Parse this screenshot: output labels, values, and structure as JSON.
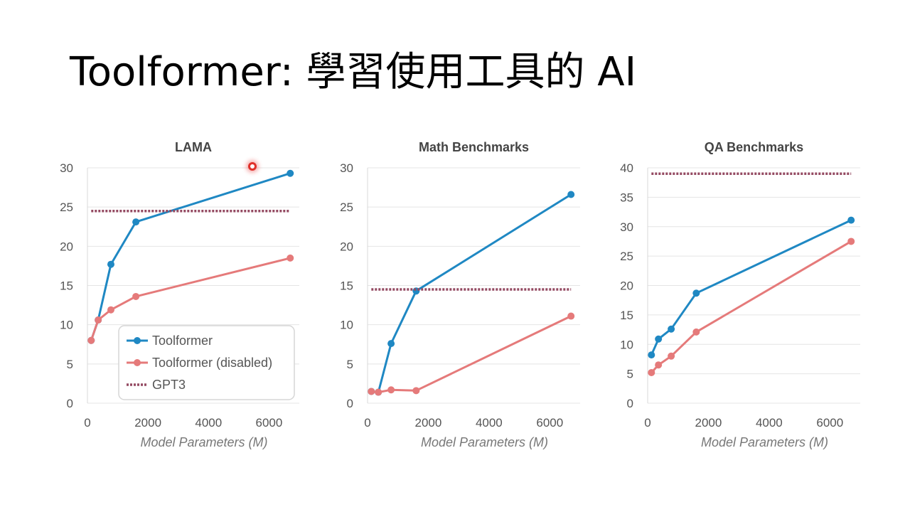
{
  "slide": {
    "title": "Toolformer: 學習使用工具的 AI"
  },
  "colors": {
    "toolformer": "#1f88c3",
    "disabled": "#e57a7a",
    "gpt3": "#944a62",
    "grid": "#e4e4e4"
  },
  "chart_data": [
    {
      "type": "line",
      "title": "LAMA",
      "xlabel": "Model Parameters (M)",
      "ylabel": "",
      "xlim": [
        0,
        7000
      ],
      "ylim": [
        0,
        30
      ],
      "xticks": [
        0,
        2000,
        4000,
        6000
      ],
      "yticks": [
        0,
        5,
        10,
        15,
        20,
        25,
        30
      ],
      "grid": true,
      "legend": "bottom-right",
      "series": [
        {
          "name": "Toolformer",
          "style": "solid",
          "color": "#1f88c3",
          "x": [
            124,
            355,
            775,
            1600,
            6700
          ],
          "y": [
            8.0,
            10.6,
            17.7,
            23.1,
            29.3
          ]
        },
        {
          "name": "Toolformer (disabled)",
          "style": "solid",
          "color": "#e57a7a",
          "x": [
            124,
            355,
            775,
            1600,
            6700
          ],
          "y": [
            8.0,
            10.6,
            11.9,
            13.6,
            18.5
          ]
        },
        {
          "name": "GPT3",
          "style": "dotted",
          "color": "#944a62",
          "x": [
            124,
            6700
          ],
          "y": [
            24.5,
            24.5
          ]
        }
      ]
    },
    {
      "type": "line",
      "title": "Math Benchmarks",
      "xlabel": "Model Parameters (M)",
      "ylabel": "",
      "xlim": [
        0,
        7000
      ],
      "ylim": [
        0,
        30
      ],
      "xticks": [
        0,
        2000,
        4000,
        6000
      ],
      "yticks": [
        0,
        5,
        10,
        15,
        20,
        25,
        30
      ],
      "grid": true,
      "legend": "none",
      "series": [
        {
          "name": "Toolformer",
          "style": "solid",
          "color": "#1f88c3",
          "x": [
            124,
            355,
            775,
            1600,
            6700
          ],
          "y": [
            1.5,
            1.4,
            7.6,
            14.3,
            26.6
          ]
        },
        {
          "name": "Toolformer (disabled)",
          "style": "solid",
          "color": "#e57a7a",
          "x": [
            124,
            355,
            775,
            1600,
            6700
          ],
          "y": [
            1.5,
            1.4,
            1.7,
            1.6,
            11.1
          ]
        },
        {
          "name": "GPT3",
          "style": "dotted",
          "color": "#944a62",
          "x": [
            124,
            6700
          ],
          "y": [
            14.5,
            14.5
          ]
        }
      ]
    },
    {
      "type": "line",
      "title": "QA Benchmarks",
      "xlabel": "Model Parameters (M)",
      "ylabel": "",
      "xlim": [
        0,
        7000
      ],
      "ylim": [
        0,
        40
      ],
      "xticks": [
        0,
        2000,
        4000,
        6000
      ],
      "yticks": [
        0,
        5,
        10,
        15,
        20,
        25,
        30,
        35,
        40
      ],
      "grid": true,
      "legend": "none",
      "series": [
        {
          "name": "Toolformer",
          "style": "solid",
          "color": "#1f88c3",
          "x": [
            124,
            355,
            775,
            1600,
            6700
          ],
          "y": [
            8.2,
            10.9,
            12.6,
            18.7,
            31.1
          ]
        },
        {
          "name": "Toolformer (disabled)",
          "style": "solid",
          "color": "#e57a7a",
          "x": [
            124,
            355,
            775,
            1600,
            6700
          ],
          "y": [
            5.2,
            6.5,
            8.0,
            12.1,
            27.5
          ]
        },
        {
          "name": "GPT3",
          "style": "dotted",
          "color": "#944a62",
          "x": [
            124,
            6700
          ],
          "y": [
            39.0,
            39.0
          ]
        }
      ]
    }
  ]
}
